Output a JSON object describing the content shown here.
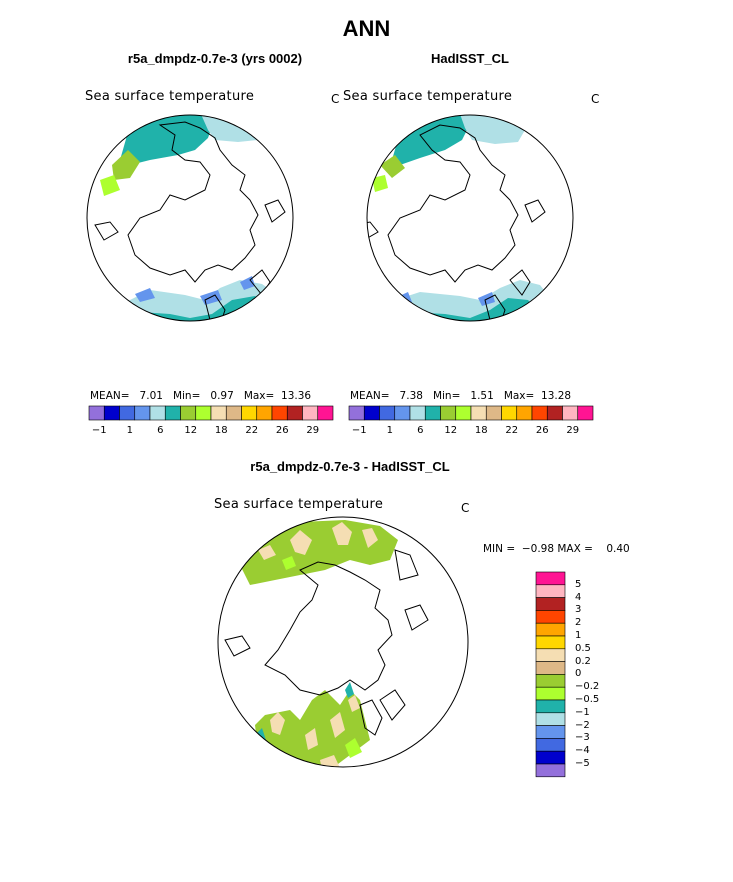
{
  "title": "ANN",
  "panels": [
    {
      "id": "model",
      "title": "r5a_dmpdz-0.7e-3 (yrs 0002)",
      "field": "Sea surface temperature",
      "unit": "C",
      "stats": {
        "mean_label": "MEAN=",
        "mean": "7.01",
        "min_label": "Min=",
        "min": "0.97",
        "max_label": "Max=",
        "max": "13.36"
      }
    },
    {
      "id": "obs",
      "title": "HadISST_CL",
      "field": "Sea surface temperature",
      "unit": "C",
      "stats": {
        "mean_label": "MEAN=",
        "mean": "7.38",
        "min_label": "Min=",
        "min": "1.51",
        "max_label": "Max=",
        "max": "13.28"
      }
    }
  ],
  "abs_colorbar": {
    "colors": [
      "#9370db",
      "#0000cd",
      "#4169e1",
      "#6495ed",
      "#b0e0e6",
      "#20b2aa",
      "#9acd32",
      "#adff2f",
      "#f5deb3",
      "#deb887",
      "#ffd700",
      "#ffa500",
      "#ff4500",
      "#b22222",
      "#ffb6c1",
      "#ff1493"
    ],
    "ticks": [
      "−1",
      "1",
      "6",
      "12",
      "18",
      "22",
      "26",
      "29"
    ]
  },
  "diff_panel": {
    "title": "r5a_dmpdz-0.7e-3 - HadISST_CL",
    "field": "Sea surface temperature",
    "unit": "C",
    "min_label": "MIN =",
    "min": "−0.98",
    "max_label": "MAX =",
    "max": "0.40"
  },
  "diff_colorbar": {
    "colors": [
      "#ff1493",
      "#ffb6c1",
      "#b22222",
      "#ff4500",
      "#ffa500",
      "#ffd700",
      "#f5deb3",
      "#deb887",
      "#9acd32",
      "#adff2f",
      "#20b2aa",
      "#b0e0e6",
      "#6495ed",
      "#4169e1",
      "#0000cd",
      "#9370db"
    ],
    "ticks": [
      "5",
      "4",
      "3",
      "2",
      "1",
      "0.5",
      "0.2",
      "0",
      "−0.2",
      "−0.5",
      "−1",
      "−2",
      "−3",
      "−4",
      "−5"
    ]
  }
}
